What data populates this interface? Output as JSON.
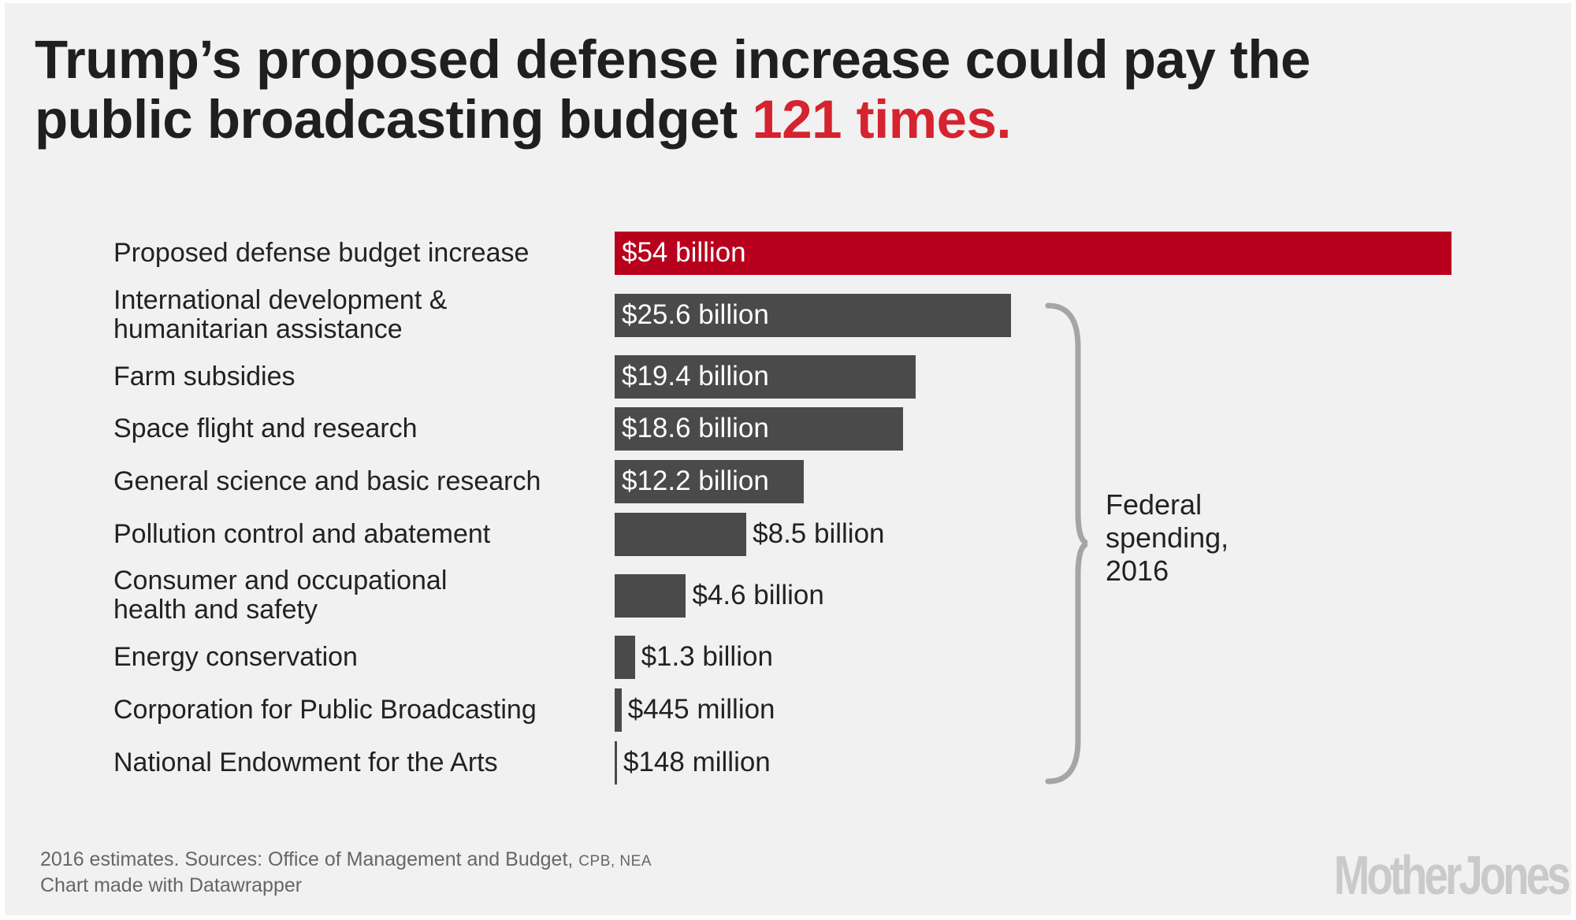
{
  "title": {
    "line1": "Trump’s proposed defense increase could pay the",
    "line2_prefix": "public broadcasting budget",
    "line2_highlight": "121 times."
  },
  "chart_data": {
    "type": "bar",
    "orientation": "horizontal",
    "unit": "billion USD",
    "xlim": [
      0,
      54
    ],
    "categories": [
      [
        "Proposed defense budget increase"
      ],
      [
        "International development &",
        "humanitarian assistance"
      ],
      [
        "Farm subsidies"
      ],
      [
        "Space flight and research"
      ],
      [
        "General science and basic research"
      ],
      [
        "Pollution control and abatement"
      ],
      [
        "Consumer and occupational",
        "health and safety"
      ],
      [
        "Energy conservation"
      ],
      [
        "Corporation for Public Broadcasting"
      ],
      [
        "National Endowment for the Arts"
      ]
    ],
    "values": [
      54,
      25.6,
      19.4,
      18.6,
      12.2,
      8.5,
      4.6,
      1.3,
      0.445,
      0.148
    ],
    "labels": [
      "$54 billion",
      "$25.6 billion",
      "$19.4 billion",
      "$18.6 billion",
      "$12.2 billion",
      "$8.5 billion",
      "$4.6 billion",
      "$1.3 billion",
      "$445 million",
      "$148 million"
    ],
    "highlight_index": 0,
    "group_annotation": [
      "Federal",
      "spending,",
      "2016"
    ]
  },
  "colors": {
    "highlight": "#b8001d",
    "bar": "#4a4a4a",
    "title_accent": "#d5232f",
    "brace": "#a5a5a5"
  },
  "footer": {
    "source_prefix": "2016 estimates. Sources: Office of Management and Budget,",
    "source_smallcaps": "CPB, NEA",
    "credit": "Chart made with Datawrapper",
    "logo": "MotherJones"
  }
}
